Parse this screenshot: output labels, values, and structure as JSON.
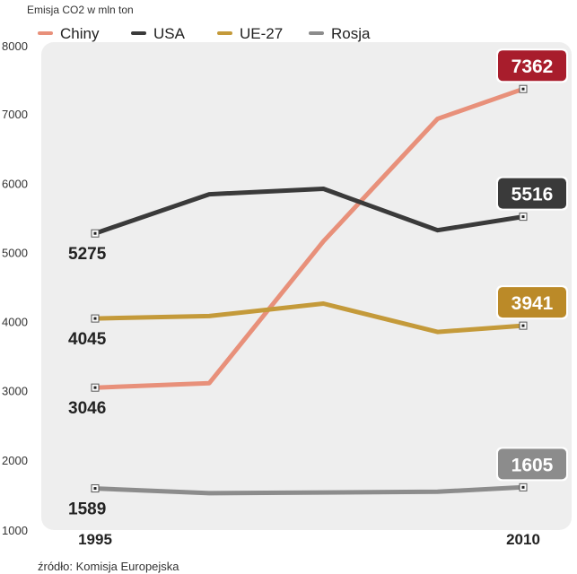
{
  "chart_data": {
    "type": "line",
    "unit_label": "Emisja CO2 w mln ton",
    "x": [
      1995,
      1999,
      2003,
      2007,
      2010
    ],
    "x_tick_labels": [
      "1995",
      "2010"
    ],
    "ylim": [
      1000,
      8000
    ],
    "y_ticks": [
      1000,
      2000,
      3000,
      4000,
      5000,
      6000,
      7000,
      8000
    ],
    "grid": false,
    "legend_position": "top",
    "series": [
      {
        "name": "Chiny",
        "color": "#e8907a",
        "end_box_color": "#a81d2c",
        "values": [
          3046,
          3110,
          5160,
          6930,
          7362
        ],
        "start_label": "3046",
        "end_label": "7362"
      },
      {
        "name": "USA",
        "color": "#3a3a3a",
        "end_box_color": "#3a3a3a",
        "values": [
          5275,
          5840,
          5920,
          5320,
          5516
        ],
        "start_label": "5275",
        "end_label": "5516"
      },
      {
        "name": "UE-27",
        "color": "#c49a3a",
        "end_box_color": "#bb8a28",
        "values": [
          4045,
          4080,
          4260,
          3850,
          3941
        ],
        "start_label": "4045",
        "end_label": "3941"
      },
      {
        "name": "Rosja",
        "color": "#8c8c8c",
        "end_box_color": "#8c8c8c",
        "values": [
          1589,
          1520,
          1530,
          1540,
          1605
        ],
        "start_label": "1589",
        "end_label": "1605"
      }
    ],
    "source": "źródło: Komisja Europejska"
  }
}
